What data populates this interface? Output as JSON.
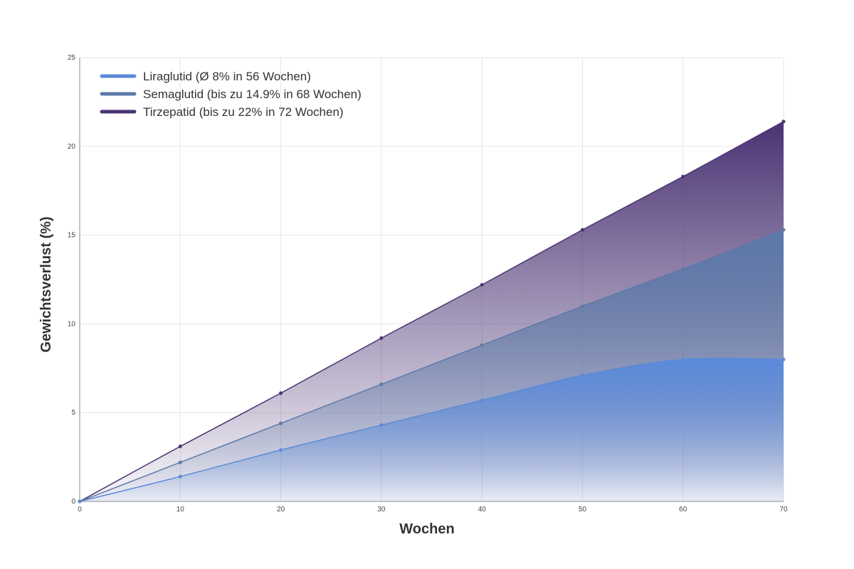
{
  "chart_data": {
    "type": "area",
    "title": "",
    "xlabel": "Wochen",
    "ylabel": "Gewichtsverlust (%)",
    "xlim": [
      0,
      70
    ],
    "ylim": [
      0,
      25
    ],
    "x": [
      0,
      10,
      20,
      30,
      40,
      50,
      60,
      70
    ],
    "x_ticks": [
      "0",
      "10",
      "20",
      "30",
      "40",
      "50",
      "60",
      "70"
    ],
    "y_ticks": [
      "0",
      "5",
      "10",
      "15",
      "20",
      "25"
    ],
    "grid": true,
    "legend_position": "top-left",
    "series": [
      {
        "name": "Liraglutid (Ø 8% in 56 Wochen)",
        "color": "#5b8ad9",
        "values": [
          0,
          1.4,
          2.9,
          4.3,
          5.7,
          7.1,
          8.0,
          8.0
        ]
      },
      {
        "name": "Semaglutid (bis zu 14.9% in 68 Wochen)",
        "color": "#5c79a8",
        "values": [
          0,
          2.2,
          4.4,
          6.6,
          8.8,
          11.0,
          13.1,
          15.3
        ]
      },
      {
        "name": "Tirzepatid (bis zu 22% in 72 Wochen)",
        "color": "#4a3373",
        "values": [
          0,
          3.1,
          6.1,
          9.2,
          12.2,
          15.3,
          18.3,
          21.4
        ]
      }
    ]
  }
}
